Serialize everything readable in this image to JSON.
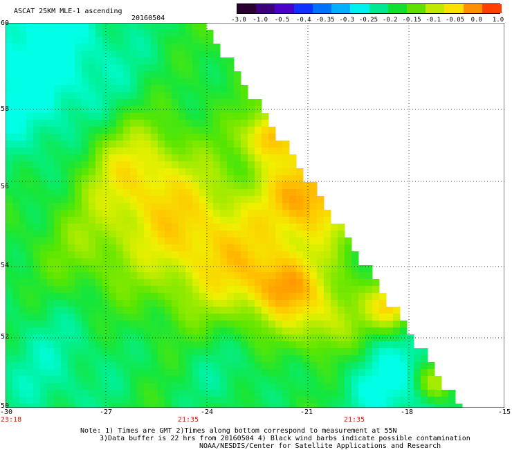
{
  "title": "ASCAT 25KM MLE-1 ascending",
  "date": "20160504",
  "colorbar": {
    "labels": [
      "-3.0",
      "-1.0",
      "-0.5",
      "-0.4",
      "-0.35",
      "-0.3",
      "-0.25",
      "-0.2",
      "-0.15",
      "-0.1",
      "-0.05",
      "0.0",
      "1.0"
    ],
    "colors": [
      "#2a0030",
      "#3c0078",
      "#4a00c8",
      "#1030ff",
      "#0070ff",
      "#00b0ff",
      "#00f0f0",
      "#00e890",
      "#10e030",
      "#60e000",
      "#c0e800",
      "#ffe000",
      "#ff9000",
      "#ff4000"
    ]
  },
  "lat_labels": [
    "60",
    "58",
    "56",
    "54",
    "52",
    "50"
  ],
  "lon_labels": [
    "-30",
    "-27",
    "-24",
    "-21",
    "-18",
    "-15"
  ],
  "time_labels": [
    "23:18",
    "21:35",
    "21:35"
  ],
  "notes": [
    "Note: 1) Times are GMT 2)Times along bottom correspond to measurement at 55N",
    "3)Data buffer is 22 hrs from 20160504 4) Black wind barbs indicate possible contamination",
    "NOAA/NESDIS/Center for Satellite Applications and Research"
  ]
}
